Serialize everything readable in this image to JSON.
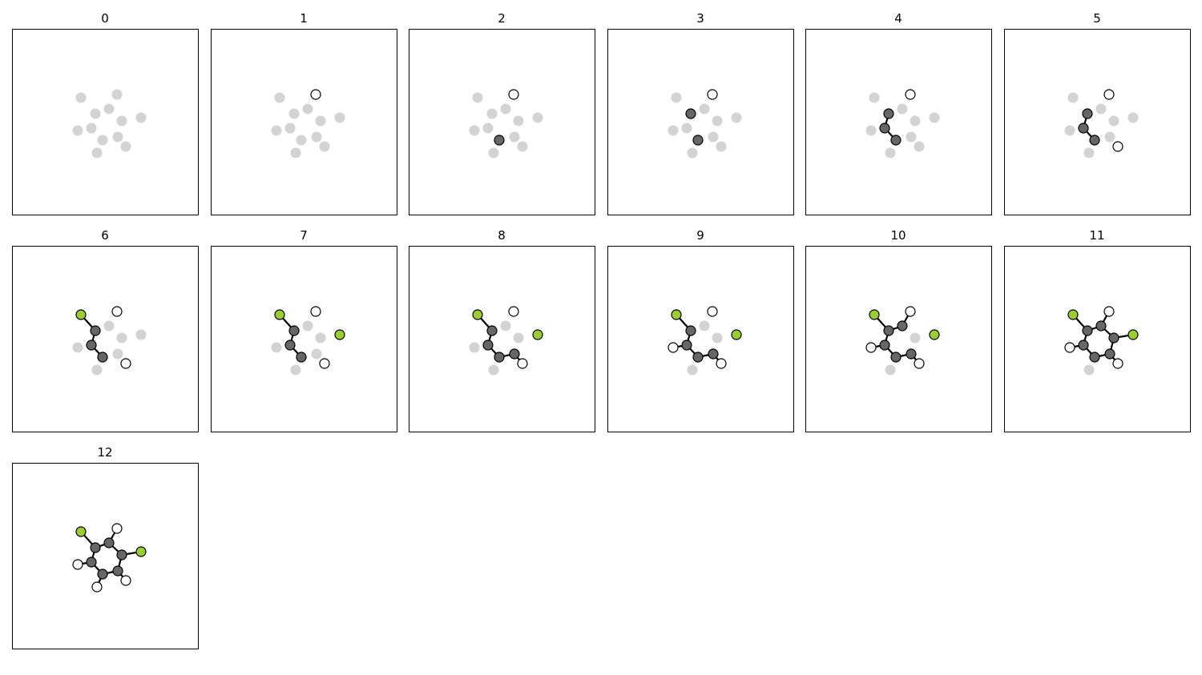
{
  "panels": [
    {
      "title": "0"
    },
    {
      "title": "1"
    },
    {
      "title": "2"
    },
    {
      "title": "3"
    },
    {
      "title": "4"
    },
    {
      "title": "5"
    },
    {
      "title": "6"
    },
    {
      "title": "7"
    },
    {
      "title": "8"
    },
    {
      "title": "9"
    },
    {
      "title": "10"
    },
    {
      "title": "11"
    },
    {
      "title": "12"
    }
  ]
}
